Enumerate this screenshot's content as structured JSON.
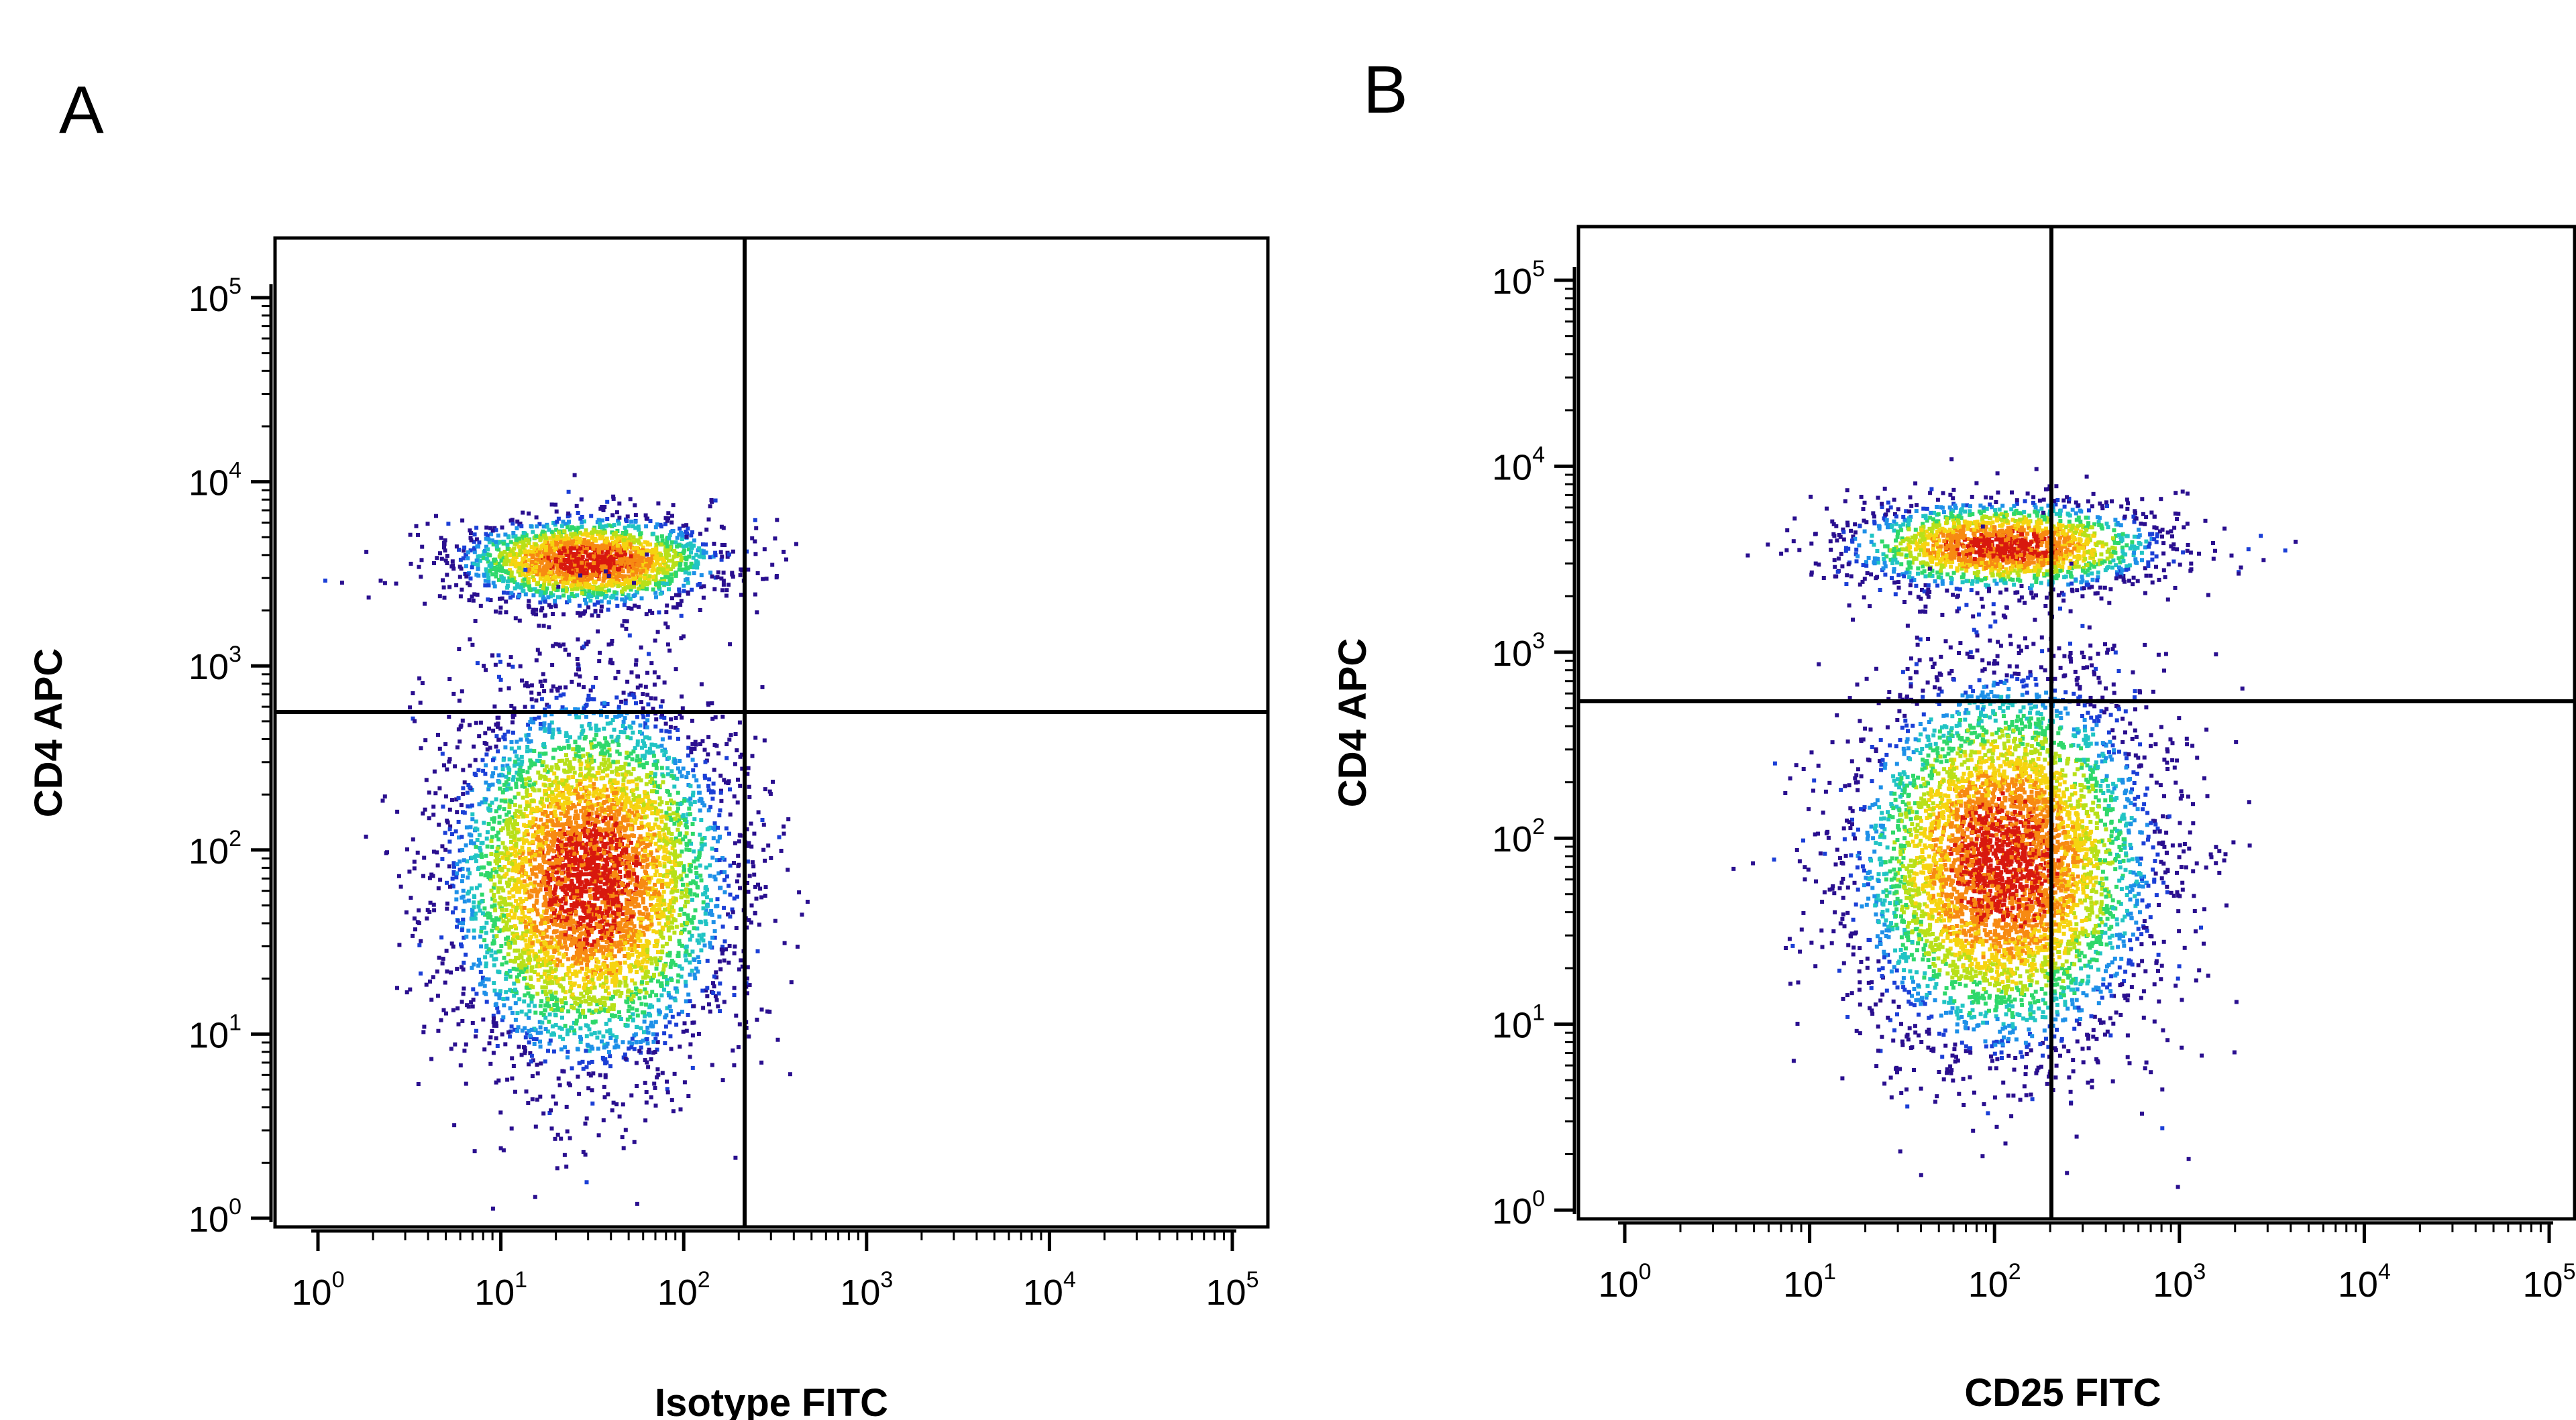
{
  "chart_data": [
    {
      "panel": "A",
      "type": "scatter",
      "xlabel": "Isotype FITC",
      "ylabel": "CD4 APC",
      "x_scale": "log",
      "y_scale": "log",
      "xlim": [
        1,
        100000
      ],
      "ylim": [
        1,
        100000
      ],
      "x_ticks": [
        {
          "base": "10",
          "exp": "0"
        },
        {
          "base": "10",
          "exp": "1"
        },
        {
          "base": "10",
          "exp": "2"
        },
        {
          "base": "10",
          "exp": "3"
        },
        {
          "base": "10",
          "exp": "4"
        },
        {
          "base": "10",
          "exp": "5"
        }
      ],
      "y_ticks": [
        {
          "base": "10",
          "exp": "0"
        },
        {
          "base": "10",
          "exp": "1"
        },
        {
          "base": "10",
          "exp": "2"
        },
        {
          "base": "10",
          "exp": "3"
        },
        {
          "base": "10",
          "exp": "4"
        },
        {
          "base": "10",
          "exp": "5"
        }
      ],
      "quadrant_gate": {
        "x": 300,
        "y": 600
      },
      "grid": false,
      "populations": [
        {
          "x_center": 30,
          "y_center": 3800,
          "x_spread_decades": 0.35,
          "y_spread_decades": 0.12,
          "points": 2000
        },
        {
          "x_center": 30,
          "y_center": 70,
          "x_spread_decades": 0.38,
          "y_spread_decades": 0.5,
          "points": 5200
        }
      ]
    },
    {
      "panel": "B",
      "type": "scatter",
      "xlabel": "CD25 FITC",
      "ylabel": "CD4 APC",
      "x_scale": "log",
      "y_scale": "log",
      "xlim": [
        1,
        100000
      ],
      "ylim": [
        1,
        100000
      ],
      "x_ticks": [
        {
          "base": "10",
          "exp": "0"
        },
        {
          "base": "10",
          "exp": "1"
        },
        {
          "base": "10",
          "exp": "2"
        },
        {
          "base": "10",
          "exp": "3"
        },
        {
          "base": "10",
          "exp": "4"
        },
        {
          "base": "10",
          "exp": "5"
        }
      ],
      "y_ticks": [
        {
          "base": "10",
          "exp": "0"
        },
        {
          "base": "10",
          "exp": "1"
        },
        {
          "base": "10",
          "exp": "2"
        },
        {
          "base": "10",
          "exp": "3"
        },
        {
          "base": "10",
          "exp": "4"
        },
        {
          "base": "10",
          "exp": "5"
        }
      ],
      "quadrant_gate": {
        "x": 300,
        "y": 600
      },
      "grid": false,
      "populations": [
        {
          "x_center": 110,
          "y_center": 3800,
          "x_spread_decades": 0.42,
          "y_spread_decades": 0.12,
          "points": 1900
        },
        {
          "x_center": 110,
          "y_center": 75,
          "x_spread_decades": 0.4,
          "y_spread_decades": 0.5,
          "points": 5200
        }
      ]
    }
  ],
  "density_colors": [
    "#2a0f8f",
    "#1b3fd6",
    "#1e90e8",
    "#21c4c4",
    "#2fd86a",
    "#b8e019",
    "#f6d410",
    "#f78a12",
    "#d8180e"
  ]
}
